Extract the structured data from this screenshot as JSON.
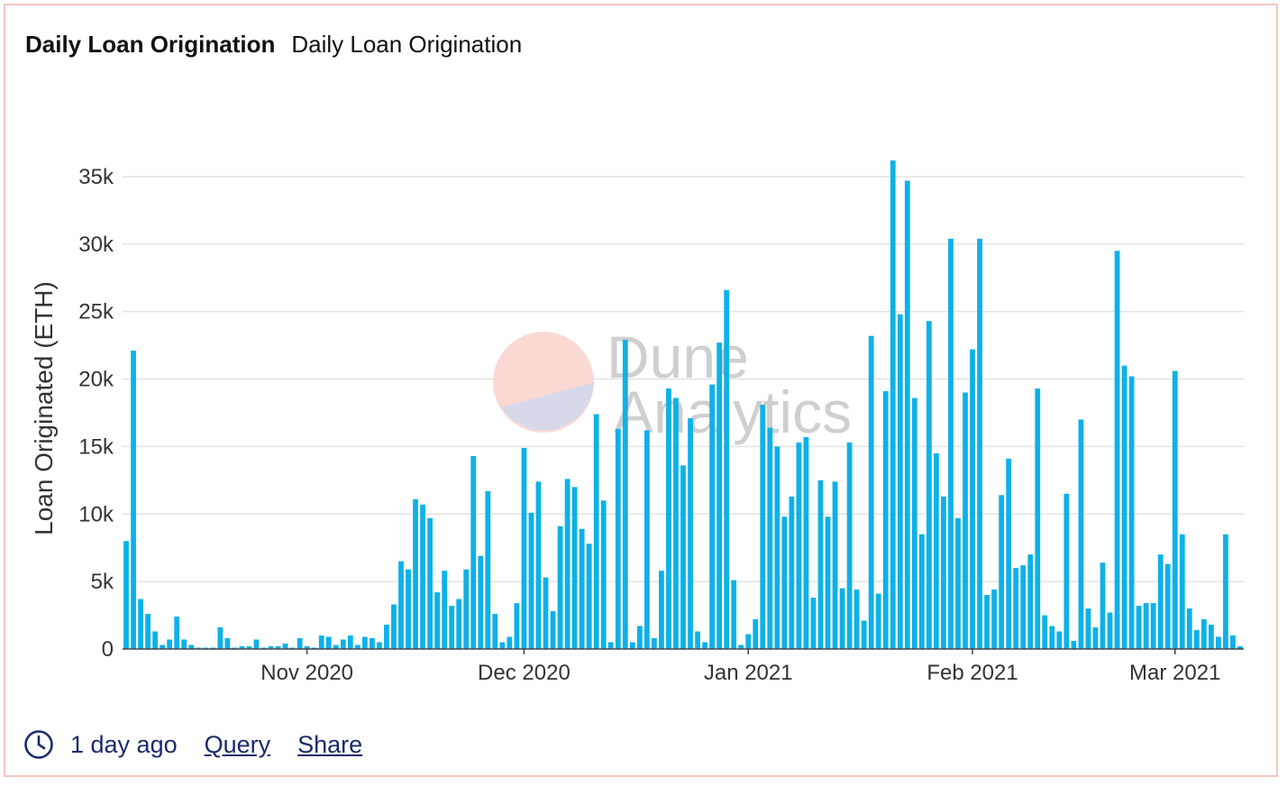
{
  "card": {
    "title": "Daily Loan Origination",
    "subtitle": "Daily Loan Origination"
  },
  "watermark": {
    "line1": "Dune",
    "line2": "Analytics"
  },
  "footer": {
    "time_ago": "1 day ago",
    "query_label": "Query",
    "share_label": "Share"
  },
  "colors": {
    "bar": "#0db1e8",
    "grid": "#e3e3e3",
    "border": "#f5c6c0",
    "link": "#1a2a6c"
  },
  "chart_data": {
    "type": "bar",
    "title": "Daily Loan Origination",
    "xlabel": "",
    "ylabel": "Loan Originated (ETH)",
    "ylim": [
      0,
      37000
    ],
    "yticks": [
      0,
      5000,
      10000,
      15000,
      20000,
      25000,
      30000,
      35000
    ],
    "ytick_labels": [
      "0",
      "5k",
      "10k",
      "15k",
      "20k",
      "25k",
      "30k",
      "35k"
    ],
    "grid": true,
    "start_date": "2020-10-07",
    "xticks": [
      {
        "label": "Nov 2020",
        "day_index": 25
      },
      {
        "label": "Dec 2020",
        "day_index": 55
      },
      {
        "label": "Jan 2021",
        "day_index": 86
      },
      {
        "label": "Feb 2021",
        "day_index": 117
      },
      {
        "label": "Mar 2021",
        "day_index": 145
      }
    ],
    "series": [
      {
        "name": "Loan Originated (ETH)",
        "values": [
          8000,
          22100,
          3700,
          2600,
          1300,
          300,
          700,
          2400,
          700,
          300,
          100,
          100,
          100,
          1600,
          800,
          100,
          200,
          200,
          700,
          100,
          200,
          200,
          400,
          100,
          800,
          200,
          100,
          1000,
          900,
          300,
          700,
          1000,
          300,
          900,
          800,
          500,
          1800,
          3300,
          6500,
          5900,
          11100,
          10700,
          9700,
          4200,
          5800,
          3200,
          3700,
          5900,
          14300,
          6900,
          11700,
          2600,
          500,
          900,
          3400,
          14900,
          10100,
          12400,
          5300,
          2800,
          9100,
          12600,
          12000,
          8900,
          7800,
          17400,
          11000,
          500,
          16300,
          22900,
          500,
          1700,
          16200,
          800,
          5800,
          19300,
          18600,
          13600,
          17100,
          1300,
          500,
          19600,
          22700,
          26600,
          5100,
          300,
          1100,
          2200,
          18100,
          16400,
          15000,
          9800,
          11300,
          15300,
          15700,
          3800,
          12500,
          9800,
          12400,
          4500,
          15300,
          4400,
          2100,
          23200,
          4100,
          19100,
          36200,
          24800,
          34700,
          18600,
          8500,
          24300,
          14500,
          11300,
          30400,
          9700,
          19000,
          22200,
          30400,
          4000,
          4400,
          11400,
          14100,
          6000,
          6200,
          7000,
          19300,
          2500,
          1700,
          1300,
          11500,
          600,
          17000,
          3000,
          1600,
          6400,
          2700,
          29500,
          21000,
          20200,
          3200,
          3400,
          3400,
          7000,
          6300,
          20600,
          8500,
          3000,
          1400,
          2200,
          1800,
          900,
          8500,
          1000,
          200
        ]
      }
    ]
  }
}
